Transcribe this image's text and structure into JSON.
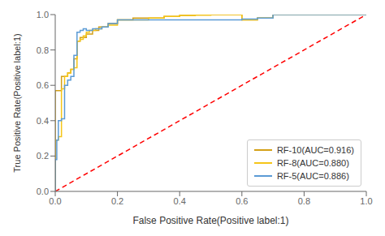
{
  "chart_data": {
    "type": "line",
    "xlabel": "False Positive Rate(Positive label:1)",
    "ylabel": "True Positive Rate(Positive label:1)",
    "xlim": [
      0.0,
      1.0
    ],
    "ylim": [
      0.0,
      1.0
    ],
    "xticks": [
      {
        "value": 0.0,
        "label": "0.0"
      },
      0.2,
      0.4,
      0.6,
      0.8,
      {
        "value": 1.0,
        "label": "1.0"
      }
    ],
    "yticks": [
      {
        "value": 0.0,
        "label": "0.0"
      },
      0.2,
      0.4,
      0.6,
      0.8,
      {
        "value": 1.0,
        "label": "1.0"
      }
    ],
    "grid": false,
    "legend": "lower right",
    "series": [
      {
        "color": "#ff0000",
        "line_style": "dashed",
        "x": [
          0,
          1
        ],
        "values": [
          0,
          1
        ]
      },
      {
        "name": "RF-10(AUC=0.916)",
        "color": "#d4a017",
        "line_style": "solid",
        "x": [
          0.0,
          0.0,
          0.02,
          0.02,
          0.04,
          0.04,
          0.05,
          0.05,
          0.06,
          0.06,
          0.07,
          0.07,
          0.08,
          0.08,
          0.09,
          0.1,
          0.1,
          0.12,
          0.12,
          0.14,
          0.14,
          0.17,
          0.17,
          0.2,
          0.2,
          0.25,
          0.25,
          0.35,
          0.35,
          0.4,
          0.4,
          0.45,
          0.45,
          0.5,
          0.5,
          0.6,
          0.6,
          0.65,
          0.65,
          0.7,
          0.7,
          1.0
        ],
        "values": [
          0.0,
          0.57,
          0.57,
          0.65,
          0.65,
          0.67,
          0.67,
          0.69,
          0.69,
          0.75,
          0.75,
          0.85,
          0.85,
          0.87,
          0.87,
          0.87,
          0.89,
          0.89,
          0.91,
          0.91,
          0.93,
          0.93,
          0.95,
          0.95,
          0.97,
          0.97,
          0.98,
          0.98,
          0.99,
          0.99,
          0.995,
          0.995,
          0.998,
          0.998,
          1.0,
          1.0,
          0.97,
          0.97,
          0.98,
          0.98,
          1.0,
          1.0
        ]
      },
      {
        "name": "RF-8(AUC=0.880)",
        "color": "#f5c518",
        "line_style": "solid",
        "x": [
          0.0,
          0.0,
          0.01,
          0.01,
          0.02,
          0.02,
          0.03,
          0.03,
          0.04,
          0.04,
          0.05,
          0.05,
          0.06,
          0.06,
          0.07,
          0.07,
          0.08,
          0.08,
          0.09,
          0.09,
          0.1,
          0.1,
          0.11,
          0.11,
          0.13,
          0.13,
          0.15,
          0.15,
          0.17,
          0.17,
          0.2,
          0.2,
          0.3,
          0.3,
          0.35,
          0.35,
          0.4,
          0.4,
          0.45,
          0.45,
          0.5,
          0.5,
          0.6,
          0.6,
          0.65,
          0.65,
          0.7,
          0.7,
          1.0
        ],
        "values": [
          0.0,
          0.29,
          0.29,
          0.31,
          0.31,
          0.58,
          0.58,
          0.65,
          0.65,
          0.67,
          0.67,
          0.69,
          0.69,
          0.7,
          0.7,
          0.85,
          0.85,
          0.86,
          0.86,
          0.88,
          0.88,
          0.9,
          0.9,
          0.91,
          0.91,
          0.92,
          0.92,
          0.93,
          0.93,
          0.94,
          0.94,
          0.97,
          0.97,
          0.98,
          0.98,
          0.99,
          0.99,
          0.995,
          0.995,
          0.998,
          0.998,
          1.0,
          1.0,
          0.97,
          0.97,
          0.98,
          0.98,
          1.0,
          1.0
        ]
      },
      {
        "name": "RF-5(AUC=0.886)",
        "color": "#5b9bd5",
        "line_style": "solid",
        "x": [
          0.0,
          0.0,
          0.005,
          0.005,
          0.01,
          0.01,
          0.02,
          0.02,
          0.03,
          0.03,
          0.04,
          0.04,
          0.05,
          0.05,
          0.06,
          0.06,
          0.07,
          0.07,
          0.08,
          0.08,
          0.09,
          0.09,
          0.1,
          0.1,
          0.12,
          0.12,
          0.15,
          0.15,
          0.17,
          0.17,
          0.2,
          0.2,
          0.6,
          0.6,
          0.65,
          0.65,
          0.7,
          0.7,
          1.0
        ],
        "values": [
          0.0,
          0.18,
          0.18,
          0.29,
          0.29,
          0.4,
          0.4,
          0.41,
          0.41,
          0.6,
          0.6,
          0.63,
          0.63,
          0.65,
          0.65,
          0.77,
          0.77,
          0.9,
          0.9,
          0.91,
          0.91,
          0.92,
          0.92,
          0.91,
          0.91,
          0.92,
          0.92,
          0.93,
          0.93,
          0.95,
          0.95,
          0.97,
          0.97,
          0.975,
          0.975,
          0.98,
          0.98,
          1.0,
          1.0
        ]
      }
    ]
  }
}
